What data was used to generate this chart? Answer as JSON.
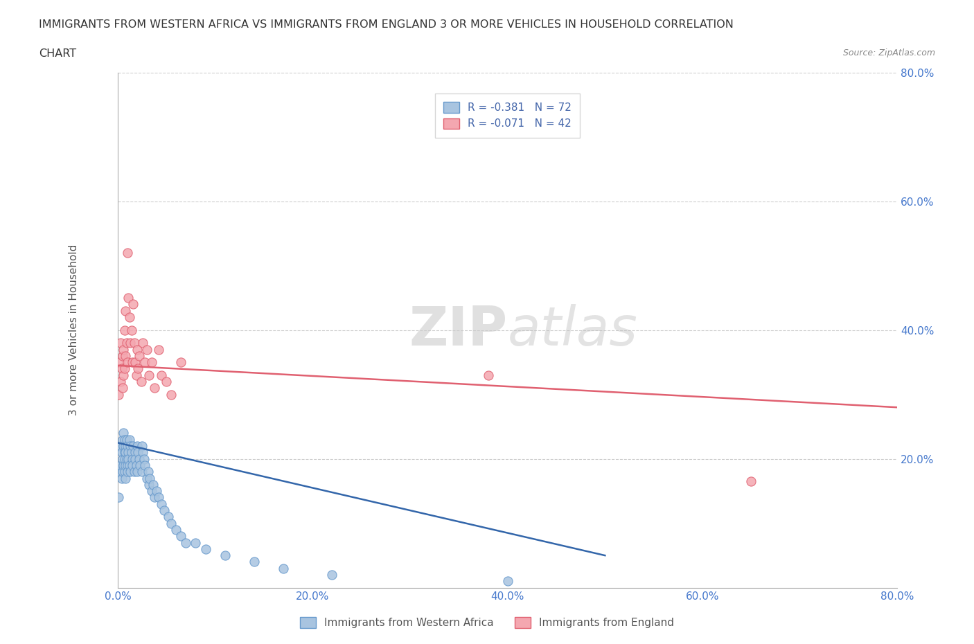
{
  "title_line1": "IMMIGRANTS FROM WESTERN AFRICA VS IMMIGRANTS FROM ENGLAND 3 OR MORE VEHICLES IN HOUSEHOLD CORRELATION",
  "title_line2": "CHART",
  "source": "Source: ZipAtlas.com",
  "ylabel": "3 or more Vehicles in Household",
  "xmin": 0.0,
  "xmax": 0.8,
  "ymin": 0.0,
  "ymax": 0.8,
  "xtick_labels": [
    "0.0%",
    "20.0%",
    "40.0%",
    "60.0%",
    "80.0%"
  ],
  "xtick_vals": [
    0.0,
    0.2,
    0.4,
    0.6,
    0.8
  ],
  "ytick_labels": [
    "20.0%",
    "40.0%",
    "60.0%",
    "80.0%"
  ],
  "ytick_vals": [
    0.2,
    0.4,
    0.6,
    0.8
  ],
  "grid_color": "#cccccc",
  "watermark_zip": "ZIP",
  "watermark_atlas": "atlas",
  "series": [
    {
      "name": "Immigrants from Western Africa",
      "R": -0.381,
      "N": 72,
      "color": "#a8c4e0",
      "edge_color": "#6699cc",
      "trend_color": "#3366aa",
      "x": [
        0.001,
        0.002,
        0.003,
        0.003,
        0.004,
        0.004,
        0.005,
        0.005,
        0.005,
        0.006,
        0.006,
        0.006,
        0.007,
        0.007,
        0.007,
        0.007,
        0.008,
        0.008,
        0.008,
        0.008,
        0.009,
        0.009,
        0.01,
        0.01,
        0.01,
        0.011,
        0.011,
        0.012,
        0.012,
        0.013,
        0.013,
        0.014,
        0.015,
        0.015,
        0.016,
        0.017,
        0.018,
        0.018,
        0.019,
        0.02,
        0.02,
        0.021,
        0.022,
        0.023,
        0.025,
        0.025,
        0.026,
        0.027,
        0.028,
        0.03,
        0.031,
        0.032,
        0.033,
        0.035,
        0.036,
        0.038,
        0.04,
        0.042,
        0.045,
        0.048,
        0.052,
        0.055,
        0.06,
        0.065,
        0.07,
        0.08,
        0.09,
        0.11,
        0.14,
        0.17,
        0.22,
        0.4
      ],
      "y": [
        0.14,
        0.18,
        0.22,
        0.19,
        0.21,
        0.17,
        0.2,
        0.23,
        0.18,
        0.22,
        0.19,
        0.24,
        0.21,
        0.2,
        0.18,
        0.23,
        0.22,
        0.19,
        0.21,
        0.17,
        0.2,
        0.23,
        0.19,
        0.22,
        0.18,
        0.21,
        0.2,
        0.23,
        0.19,
        0.22,
        0.18,
        0.21,
        0.2,
        0.19,
        0.22,
        0.18,
        0.21,
        0.2,
        0.19,
        0.22,
        0.18,
        0.21,
        0.2,
        0.19,
        0.22,
        0.18,
        0.21,
        0.2,
        0.19,
        0.17,
        0.18,
        0.16,
        0.17,
        0.15,
        0.16,
        0.14,
        0.15,
        0.14,
        0.13,
        0.12,
        0.11,
        0.1,
        0.09,
        0.08,
        0.07,
        0.07,
        0.06,
        0.05,
        0.04,
        0.03,
        0.02,
        0.01
      ],
      "trend_x": [
        0.0,
        0.5
      ],
      "trend_y": [
        0.225,
        0.05
      ]
    },
    {
      "name": "Immigrants from England",
      "R": -0.071,
      "N": 42,
      "color": "#f4a7b0",
      "edge_color": "#e06070",
      "trend_color": "#e06070",
      "x": [
        0.001,
        0.002,
        0.003,
        0.003,
        0.004,
        0.005,
        0.005,
        0.006,
        0.006,
        0.007,
        0.007,
        0.008,
        0.008,
        0.009,
        0.01,
        0.01,
        0.011,
        0.012,
        0.013,
        0.014,
        0.015,
        0.016,
        0.017,
        0.018,
        0.019,
        0.02,
        0.021,
        0.022,
        0.024,
        0.026,
        0.028,
        0.03,
        0.032,
        0.035,
        0.038,
        0.042,
        0.045,
        0.05,
        0.055,
        0.065,
        0.38,
        0.65
      ],
      "y": [
        0.3,
        0.35,
        0.32,
        0.38,
        0.34,
        0.36,
        0.31,
        0.33,
        0.37,
        0.34,
        0.4,
        0.36,
        0.43,
        0.38,
        0.35,
        0.52,
        0.45,
        0.42,
        0.38,
        0.4,
        0.35,
        0.44,
        0.38,
        0.35,
        0.33,
        0.37,
        0.34,
        0.36,
        0.32,
        0.38,
        0.35,
        0.37,
        0.33,
        0.35,
        0.31,
        0.37,
        0.33,
        0.32,
        0.3,
        0.35,
        0.33,
        0.165
      ],
      "trend_x": [
        0.0,
        0.8
      ],
      "trend_y": [
        0.345,
        0.28
      ]
    }
  ]
}
